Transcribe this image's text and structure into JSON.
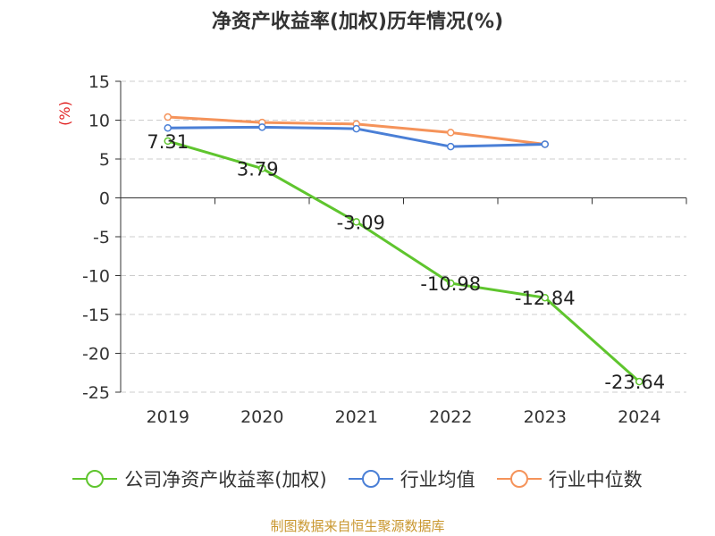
{
  "title": "净资产收益率(加权)历年情况(%)",
  "source": "制图数据来自恒生聚源数据库",
  "chart_data": {
    "type": "line",
    "title": "净资产收益率(加权)历年情况(%)",
    "ylabel": "(%)",
    "xlabel": "",
    "categories": [
      "2019",
      "2020",
      "2021",
      "2022",
      "2023",
      "2024"
    ],
    "ylim": [
      -25,
      15
    ],
    "yticks": [
      15,
      10,
      5,
      0,
      -5,
      -10,
      -15,
      -20,
      -25
    ],
    "ytick_labels": [
      "15",
      "10",
      "5",
      "0",
      "-5",
      "-10",
      "-15",
      "-20",
      "-25"
    ],
    "grid": true,
    "legend_position": "bottom",
    "series": [
      {
        "name": "公司净资产收益率(加权)",
        "color": "#5fc52e",
        "values": [
          7.31,
          3.79,
          -3.09,
          -10.98,
          -12.84,
          -23.64
        ],
        "labels": [
          "7.31",
          "3.79",
          "-3.09",
          "-10.98",
          "-12.84",
          "-23.64"
        ],
        "show_labels": true
      },
      {
        "name": "行业均值",
        "color": "#4a7fd6",
        "values": [
          9.0,
          9.1,
          8.9,
          6.6,
          6.9,
          null
        ],
        "show_labels": false
      },
      {
        "name": "行业中位数",
        "color": "#f5935a",
        "values": [
          10.4,
          9.7,
          9.5,
          8.4,
          6.9,
          null
        ],
        "show_labels": false
      }
    ]
  }
}
